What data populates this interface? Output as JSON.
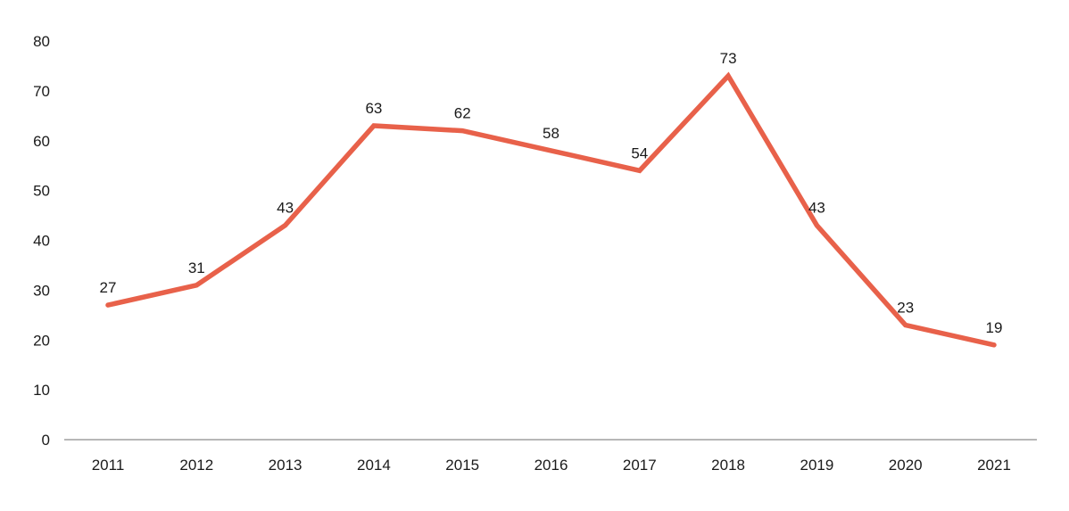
{
  "chart_data": {
    "type": "line",
    "title": "",
    "xlabel": "",
    "ylabel": "",
    "categories": [
      "2011",
      "2012",
      "2013",
      "2014",
      "2015",
      "2016",
      "2017",
      "2018",
      "2019",
      "2020",
      "2021"
    ],
    "series": [
      {
        "values": [
          27,
          31,
          43,
          63,
          62,
          58,
          54,
          73,
          43,
          23,
          19
        ],
        "color": "#e8614a"
      }
    ],
    "ylim": [
      0,
      80
    ],
    "yticks": [
      0,
      10,
      20,
      30,
      40,
      50,
      60,
      70,
      80
    ],
    "grid": false,
    "legend": "none",
    "data_labels": true,
    "axis_color": "#8c8c8c"
  }
}
